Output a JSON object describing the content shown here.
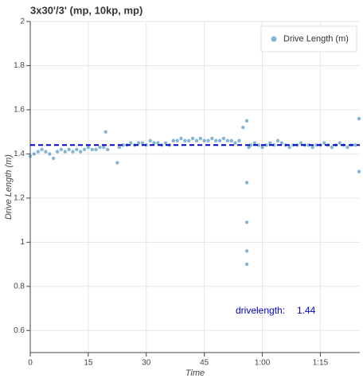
{
  "chart_data": {
    "type": "scatter",
    "title": "3x30'/3' (mp, 10kp, mp)",
    "x_label": "Time",
    "y_label": "Drive Length (m)",
    "series": [
      {
        "name": "Drive Length (m)",
        "color": "#1f77b4",
        "x": [
          0,
          1,
          2,
          3,
          4,
          5,
          6,
          7,
          8,
          9,
          10,
          11,
          12,
          13,
          14,
          15,
          16,
          17,
          18,
          19,
          20,
          19.5,
          22.5,
          23,
          24,
          25,
          26,
          27,
          28,
          29,
          30,
          31,
          32,
          33,
          34,
          35,
          36,
          37,
          38,
          39,
          40,
          41,
          42,
          43,
          44,
          45,
          46,
          47,
          48,
          49,
          50,
          51,
          52,
          53,
          54,
          55,
          56,
          56,
          56,
          56,
          56,
          56.5,
          57,
          58,
          59,
          60,
          61,
          62,
          63,
          64,
          65,
          66,
          67,
          68,
          69,
          70,
          71,
          72,
          73,
          74,
          75,
          76,
          77,
          78,
          79,
          80,
          81,
          82,
          83,
          84,
          85,
          85
        ],
        "values": [
          1.39,
          1.4,
          1.41,
          1.42,
          1.41,
          1.4,
          1.38,
          1.41,
          1.42,
          1.41,
          1.42,
          1.41,
          1.42,
          1.41,
          1.42,
          1.43,
          1.42,
          1.42,
          1.43,
          1.43,
          1.42,
          1.5,
          1.36,
          1.43,
          1.44,
          1.44,
          1.45,
          1.44,
          1.45,
          1.45,
          1.44,
          1.46,
          1.45,
          1.45,
          1.44,
          1.45,
          1.44,
          1.46,
          1.46,
          1.47,
          1.46,
          1.46,
          1.47,
          1.46,
          1.47,
          1.46,
          1.46,
          1.47,
          1.46,
          1.46,
          1.47,
          1.46,
          1.46,
          1.45,
          1.46,
          1.52,
          1.55,
          1.27,
          1.09,
          0.96,
          0.9,
          1.43,
          1.44,
          1.45,
          1.44,
          1.43,
          1.44,
          1.45,
          1.44,
          1.46,
          1.45,
          1.44,
          1.43,
          1.44,
          1.44,
          1.45,
          1.44,
          1.44,
          1.43,
          1.44,
          1.44,
          1.45,
          1.44,
          1.43,
          1.44,
          1.45,
          1.44,
          1.43,
          1.44,
          1.44,
          1.56,
          1.32
        ]
      }
    ],
    "mean": {
      "label": "drivelength:",
      "value": 1.44,
      "color": "#0000cc"
    },
    "xlim": [
      0,
      85.2
    ],
    "xticks": [
      0,
      15,
      30,
      45,
      {
        "value": 60,
        "label": "1:00"
      },
      {
        "value": 75,
        "label": "1:15"
      }
    ],
    "ylim": [
      0.5,
      2
    ],
    "yticks": [
      0.6,
      0.8,
      1,
      1.2,
      1.4,
      1.6,
      1.8,
      2
    ],
    "grid": true,
    "legend": "top-right"
  }
}
